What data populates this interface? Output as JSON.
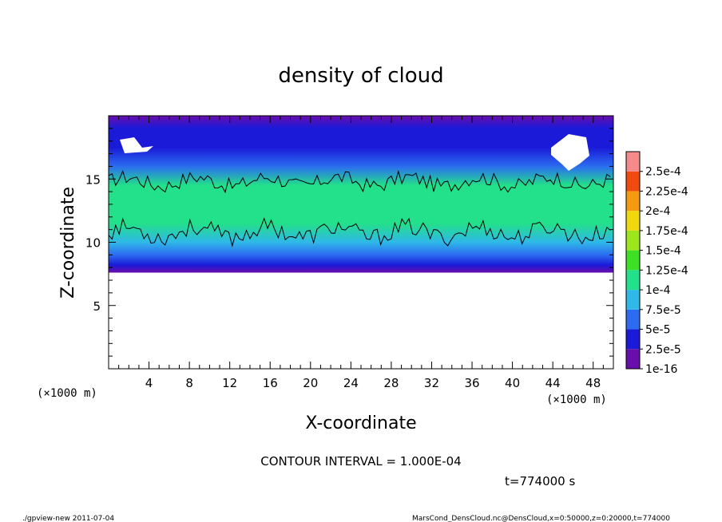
{
  "chart_data": {
    "type": "heatmap",
    "title": "density of cloud",
    "xlabel": "X-coordinate",
    "ylabel": "Z-coordinate",
    "x_units": "(×1000 m)",
    "y_units": "(×1000 m)",
    "xlim": [
      0,
      50
    ],
    "ylim": [
      0,
      20
    ],
    "x_ticks": [
      "4",
      "8",
      "12",
      "16",
      "20",
      "24",
      "28",
      "32",
      "36",
      "40",
      "44",
      "48"
    ],
    "y_ticks": [
      "5",
      "10",
      "15"
    ],
    "colorbar_labels": [
      "1e-16",
      "2.5e-5",
      "5e-5",
      "7.5e-5",
      "1e-4",
      "1.25e-4",
      "1.5e-4",
      "1.75e-4",
      "2e-4",
      "2.25e-4",
      "2.5e-4"
    ],
    "colorbar_colors": [
      "#6a0dad",
      "#1a1ad8",
      "#2b6cf0",
      "#2fb8e8",
      "#23e08a",
      "#3ee026",
      "#9ce61c",
      "#f0d80c",
      "#f59a10",
      "#f04a10",
      "#f48a8a"
    ],
    "contour_levels": [
      0.0001
    ],
    "cloud_base_km": 7.6,
    "contour_lower_km": 10.8,
    "contour_upper_km": 14.8,
    "contour_interval": "CONTOUR INTERVAL = 1.000E-04",
    "time_label": "t=774000  s",
    "profile": [
      {
        "z": 7.6,
        "v": 1e-16
      },
      {
        "z": 8.2,
        "v": 2.5e-05
      },
      {
        "z": 9.0,
        "v": 5e-05
      },
      {
        "z": 10.0,
        "v": 7.5e-05
      },
      {
        "z": 11.5,
        "v": 0.000105
      },
      {
        "z": 13.0,
        "v": 0.000115
      },
      {
        "z": 14.5,
        "v": 0.0001
      },
      {
        "z": 16.0,
        "v": 6e-05
      },
      {
        "z": 17.5,
        "v": 4e-05
      },
      {
        "z": 19.0,
        "v": 3e-05
      },
      {
        "z": 20.0,
        "v": 2e-05
      }
    ]
  },
  "footer": {
    "left": "./gpview-new  2011-07-04",
    "right": "MarsCond_DensCloud.nc@DensCloud,x=0:50000,z=0:20000,t=774000"
  }
}
